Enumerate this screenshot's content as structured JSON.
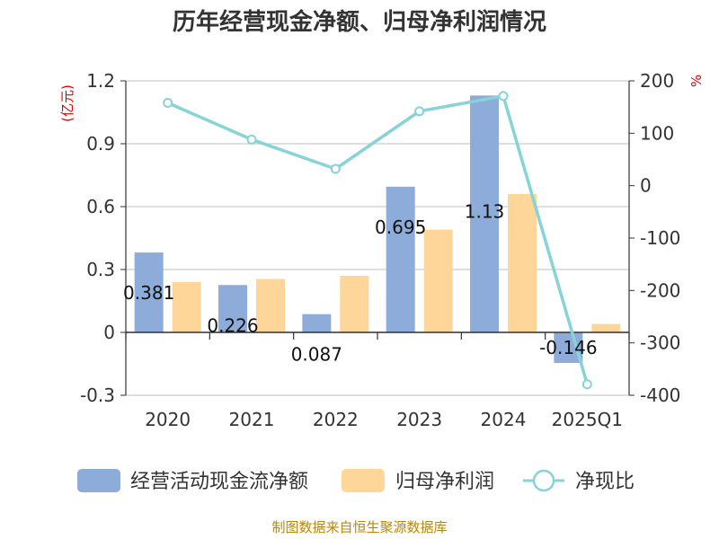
{
  "chart_data": {
    "type": "bar",
    "title": "历年经营现金净额、归母净利润情况",
    "categories": [
      "2020",
      "2021",
      "2022",
      "2023",
      "2024",
      "2025Q1"
    ],
    "series": [
      {
        "name": "经营活动现金流净额",
        "type": "bar",
        "axis": "left",
        "color": "#8eacd9",
        "values": [
          0.381,
          0.226,
          0.087,
          0.695,
          1.13,
          -0.146
        ]
      },
      {
        "name": "归母净利润",
        "type": "bar",
        "axis": "left",
        "color": "#ffd699",
        "values": [
          0.24,
          0.255,
          0.27,
          0.49,
          0.66,
          0.04
        ]
      },
      {
        "name": "净现比",
        "type": "line",
        "axis": "right",
        "color": "#86d3d8",
        "values": [
          158,
          88,
          32,
          142,
          171,
          -379
        ]
      }
    ],
    "data_labels": [
      "0.381",
      "0.226",
      "0.087",
      "0.695",
      "1.13",
      "-0.146"
    ],
    "left_axis": {
      "unit": "(亿元)",
      "ylim": [
        -0.3,
        1.2
      ],
      "ticks": [
        "1.2",
        "0.9",
        "0.6",
        "0.3",
        "0",
        "-0.3"
      ],
      "tick_values": [
        1.2,
        0.9,
        0.6,
        0.3,
        0,
        -0.3
      ]
    },
    "right_axis": {
      "unit": "%",
      "ylim": [
        -400,
        200
      ],
      "ticks": [
        "200",
        "100",
        "0",
        "-100",
        "-200",
        "-300",
        "-400"
      ],
      "tick_values": [
        200,
        100,
        0,
        -100,
        -200,
        -300,
        -400
      ]
    },
    "grid": true,
    "legend_position": "bottom",
    "source": "制图数据来自恒生聚源数据库"
  }
}
